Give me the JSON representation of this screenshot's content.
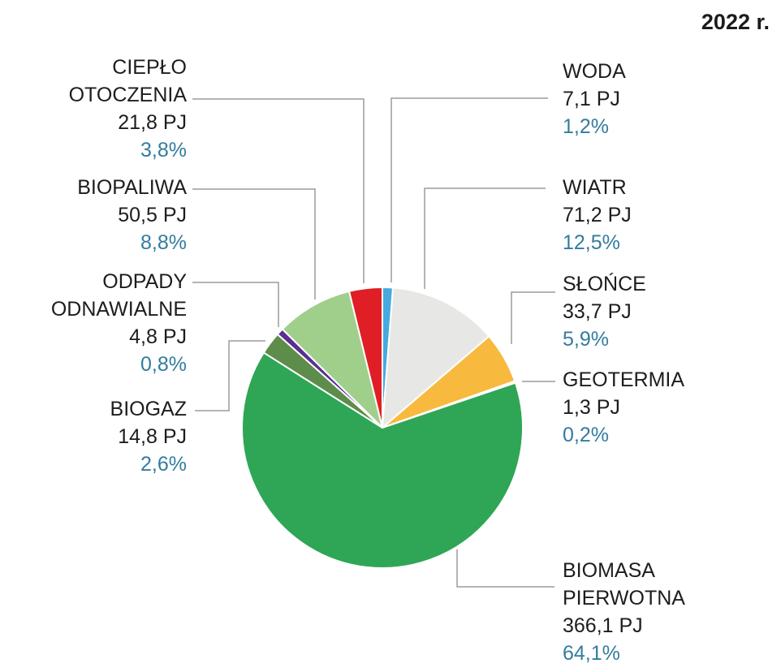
{
  "title": "2022 r.",
  "colors": {
    "percent_text": "#337C9E",
    "leader_line": "#9B9B9B",
    "background": "#FFFFFF"
  },
  "chart_data": {
    "type": "pie",
    "title": "2022 r.",
    "unit": "PJ",
    "start_angle_deg": 0,
    "direction": "clockwise",
    "slices": [
      {
        "id": "woda",
        "name": "WODA",
        "value": 7.1,
        "value_label": "7,1 PJ",
        "pct": 1.2,
        "pct_label": "1,2%",
        "color": "#45AADF"
      },
      {
        "id": "wiatr",
        "name": "WIATR",
        "value": 71.2,
        "value_label": "71,2 PJ",
        "pct": 12.5,
        "pct_label": "12,5%",
        "color": "#E7E7E5"
      },
      {
        "id": "slonce",
        "name": "SŁOŃCE",
        "value": 33.7,
        "value_label": "33,7 PJ",
        "pct": 5.9,
        "pct_label": "5,9%",
        "color": "#F7BA3E"
      },
      {
        "id": "geotermia",
        "name": "GEOTERMIA",
        "value": 1.3,
        "value_label": "1,3 PJ",
        "pct": 0.2,
        "pct_label": "0,2%",
        "color": "#5F6B24"
      },
      {
        "id": "biomasa-pierwotna",
        "name": "BIOMASA PIERWOTNA",
        "value": 366.1,
        "value_label": "366,1 PJ",
        "pct": 64.1,
        "pct_label": "64,1%",
        "color": "#2EA656"
      },
      {
        "id": "biogaz",
        "name": "BIOGAZ",
        "value": 14.8,
        "value_label": "14,8 PJ",
        "pct": 2.6,
        "pct_label": "2,6%",
        "color": "#5E8C4B"
      },
      {
        "id": "odpady-odnawialne",
        "name": "ODPADY ODNAWIALNE",
        "value": 4.8,
        "value_label": "4,8 PJ",
        "pct": 0.8,
        "pct_label": "0,8%",
        "color": "#5C2E91"
      },
      {
        "id": "biopaliwa",
        "name": "BIOPALIWA",
        "value": 50.5,
        "value_label": "50,5 PJ",
        "pct": 8.8,
        "pct_label": "8,8%",
        "color": "#A0CF8C"
      },
      {
        "id": "cieplo-otoczenia",
        "name": "CIEPŁO OTOCZENIA",
        "value": 21.8,
        "value_label": "21,8 PJ",
        "pct": 3.8,
        "pct_label": "3,8%",
        "color": "#DF1F25"
      }
    ]
  }
}
